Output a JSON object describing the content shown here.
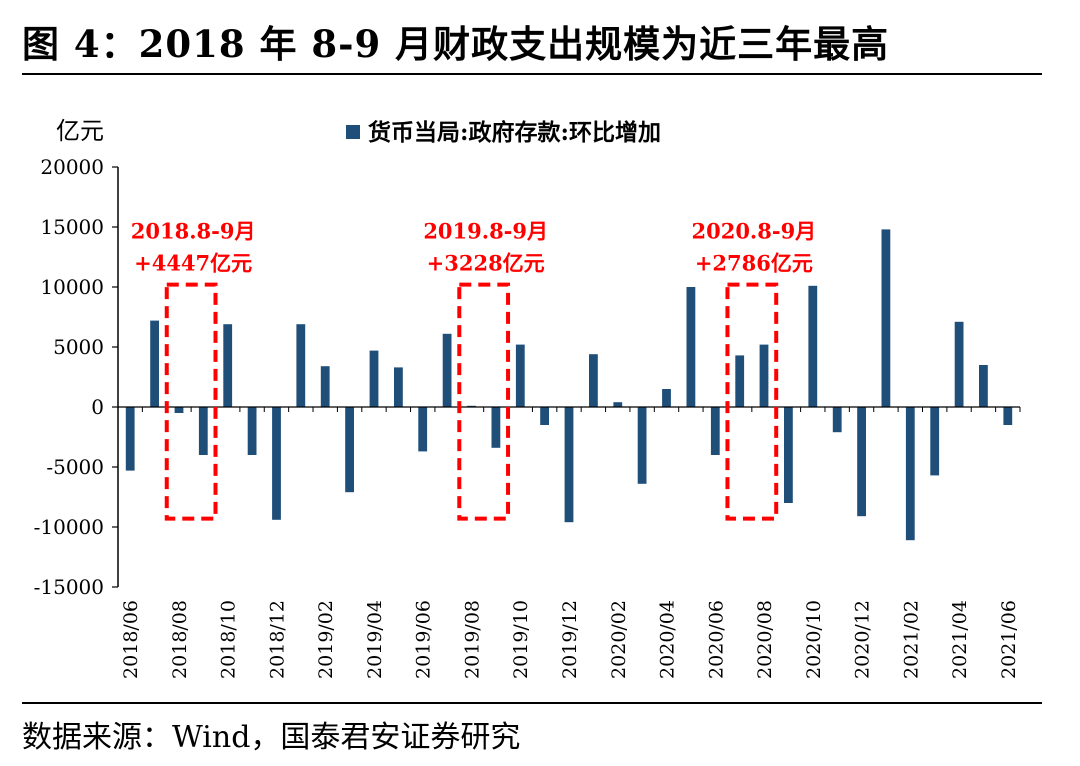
{
  "title": "图 4：2018 年 8-9 月财政支出规模为近三年最高",
  "source": "数据来源：Wind，国泰君安证券研究",
  "colors": {
    "bar": "#1f4e79",
    "annotation": "#ff0000",
    "axis": "#000000"
  },
  "chart_data": {
    "type": "bar",
    "ylabel": "亿元",
    "ylim": [
      -15000,
      20000
    ],
    "yticks": [
      20000,
      15000,
      10000,
      5000,
      0,
      -5000,
      -10000,
      -15000
    ],
    "legend": "top-center",
    "grid": false,
    "series": [
      {
        "name": "货币当局:政府存款:环比增加",
        "values": [
          -5300,
          7200,
          -500,
          -4000,
          6900,
          -4000,
          -9400,
          6900,
          3400,
          -7100,
          4700,
          3300,
          -3700,
          6100,
          100,
          -3400,
          5200,
          -1500,
          -9600,
          4400,
          400,
          -6400,
          1500,
          10000,
          -4000,
          4300,
          5200,
          -8000,
          10100,
          -2100,
          -9100,
          14800,
          -11100,
          -5700,
          7100,
          3500,
          -1500
        ]
      }
    ],
    "categories": [
      "2018/06",
      "2018/07",
      "2018/08",
      "2018/09",
      "2018/10",
      "2018/11",
      "2018/12",
      "2019/01",
      "2019/02",
      "2019/03",
      "2019/04",
      "2019/05",
      "2019/06",
      "2019/07",
      "2019/08",
      "2019/09",
      "2019/10",
      "2019/11",
      "2019/12",
      "2020/01",
      "2020/02",
      "2020/03",
      "2020/04",
      "2020/05",
      "2020/06",
      "2020/07",
      "2020/08",
      "2020/09",
      "2020/10",
      "2020/11",
      "2020/12",
      "2021/01",
      "2021/02",
      "2021/03",
      "2021/04",
      "2021/05",
      "2021/06"
    ],
    "xtick_labels": [
      "2018/06",
      "2018/08",
      "2018/10",
      "2018/12",
      "2019/02",
      "2019/04",
      "2019/06",
      "2019/08",
      "2019/10",
      "2019/12",
      "2020/02",
      "2020/04",
      "2020/06",
      "2020/08",
      "2020/10",
      "2020/12",
      "2021/02",
      "2021/04",
      "2021/06"
    ],
    "annotations": [
      {
        "line1": "2018.8-9月",
        "line2": "+4447亿元",
        "from": "2018/08",
        "to": "2018/09",
        "range": [
          -9300,
          10200
        ]
      },
      {
        "line1": "2019.8-9月",
        "line2": "+3228亿元",
        "from": "2019/08",
        "to": "2019/09",
        "range": [
          -9300,
          10200
        ]
      },
      {
        "line1": "2020.8-9月",
        "line2": "+2786亿元",
        "from": "2020/07",
        "to": "2020/08",
        "range": [
          -9300,
          10200
        ]
      }
    ]
  }
}
